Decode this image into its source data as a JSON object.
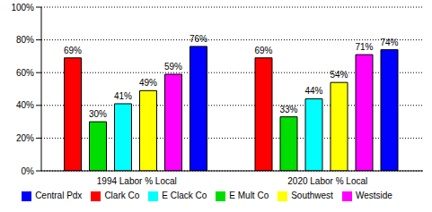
{
  "chart_data": {
    "type": "bar",
    "categories": [
      "1994 Labor % Local",
      "2020 Labor % Local"
    ],
    "series": [
      {
        "name": "Clark Co",
        "color": "#ff0000",
        "values": [
          69,
          69
        ],
        "value_labels": [
          "69%",
          "69%"
        ]
      },
      {
        "name": "E Mult Co",
        "color": "#00dd00",
        "values": [
          30,
          33
        ],
        "value_labels": [
          "30%",
          "33%"
        ]
      },
      {
        "name": "E Clack Co",
        "color": "#00ffff",
        "values": [
          41,
          44
        ],
        "value_labels": [
          "41%",
          "44%"
        ]
      },
      {
        "name": "Southwest",
        "color": "#ffff00",
        "values": [
          49,
          54
        ],
        "value_labels": [
          "49%",
          "54%"
        ]
      },
      {
        "name": "Westside",
        "color": "#ff00ff",
        "values": [
          59,
          71
        ],
        "value_labels": [
          "59%",
          "71%"
        ]
      },
      {
        "name": "Central Pdx",
        "color": "#0000ff",
        "values": [
          76,
          74
        ],
        "value_labels": [
          "76%",
          "74%"
        ]
      }
    ],
    "ylim": [
      0,
      100
    ],
    "yticks": [
      {
        "value": 0,
        "label": "0%"
      },
      {
        "value": 20,
        "label": "20%"
      },
      {
        "value": 40,
        "label": "40%"
      },
      {
        "value": 60,
        "label": "60%"
      },
      {
        "value": 80,
        "label": "80%"
      },
      {
        "value": 100,
        "label": "100%"
      }
    ],
    "grid": true,
    "data_labels": true,
    "legend": "bottom"
  }
}
